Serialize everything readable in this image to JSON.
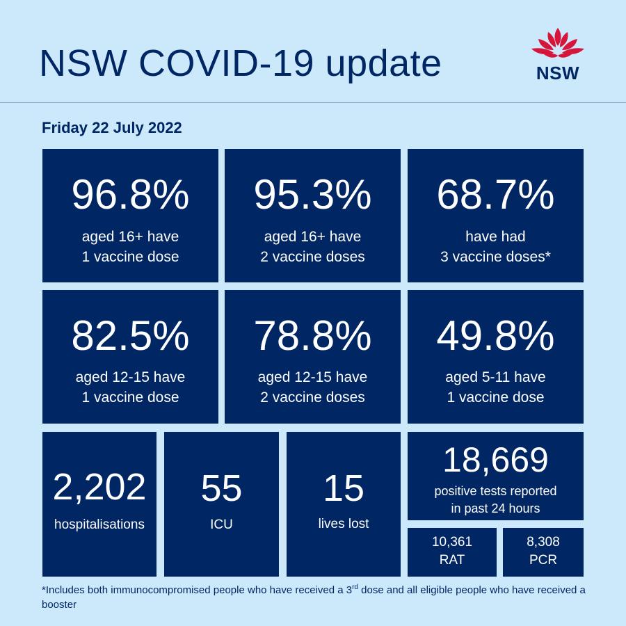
{
  "header": {
    "title": "NSW COVID-19 update",
    "logo_text": "NSW"
  },
  "date": "Friday 22 July 2022",
  "vaccination_tiles": [
    {
      "value": "96.8%",
      "line1": "aged 16+ have",
      "line2": "1 vaccine dose"
    },
    {
      "value": "95.3%",
      "line1": "aged 16+ have",
      "line2": "2 vaccine doses"
    },
    {
      "value": "68.7%",
      "line1": "have had",
      "line2": "3 vaccine doses*"
    },
    {
      "value": "82.5%",
      "line1": "aged 12-15 have",
      "line2": "1 vaccine dose"
    },
    {
      "value": "78.8%",
      "line1": "aged 12-15 have",
      "line2": "2 vaccine doses"
    },
    {
      "value": "49.8%",
      "line1": "aged 5-11 have",
      "line2": "1 vaccine dose"
    }
  ],
  "stats": {
    "hospitalisations": {
      "value": "2,202",
      "label": "hospitalisations"
    },
    "icu": {
      "value": "55",
      "label": "ICU"
    },
    "deaths": {
      "value": "15",
      "label": "lives lost"
    },
    "positive": {
      "value": "18,669",
      "line1": "positive tests reported",
      "line2": "in past 24 hours"
    },
    "rat": {
      "value": "10,361",
      "label": "RAT"
    },
    "pcr": {
      "value": "8,308",
      "label": "PCR"
    }
  },
  "footnote": {
    "part1": "*Includes both immunocompromised people who have received a 3",
    "sup": "rd",
    "part2": " dose and all eligible people who have received a booster"
  },
  "colors": {
    "background": "#cbe9fb",
    "navy": "#002664",
    "waratah_red": "#d7153a"
  },
  "icons": {
    "logo": "nsw-waratah-logo"
  }
}
